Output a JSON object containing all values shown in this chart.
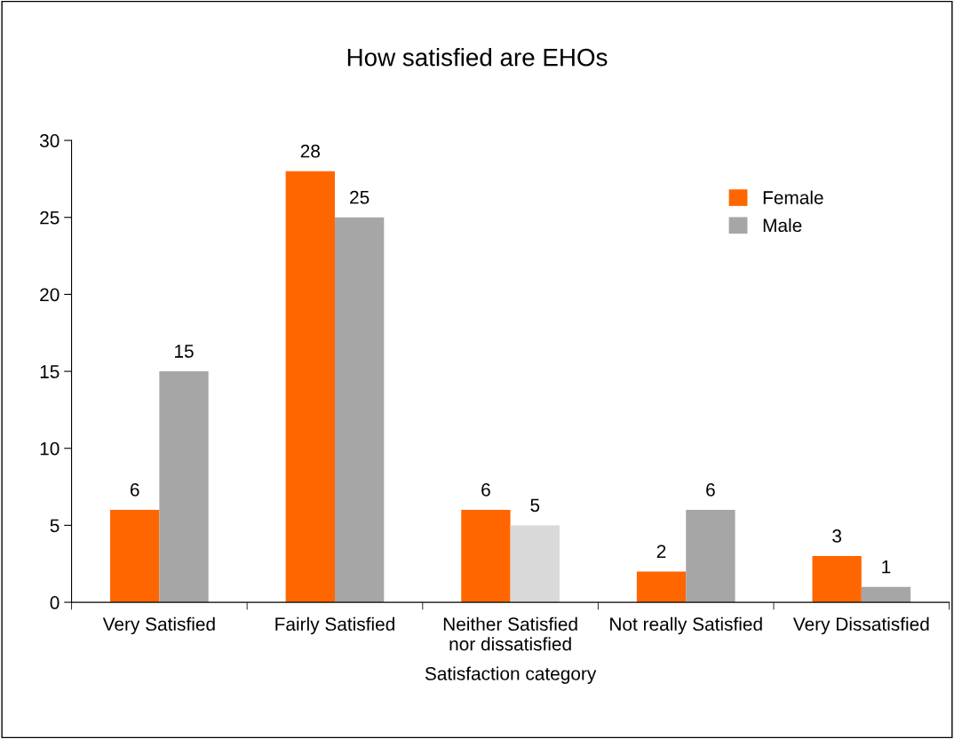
{
  "chart_data": {
    "type": "bar",
    "title": "How satisfied are EHOs",
    "xlabel": "Satisfaction category",
    "categories": [
      "Very Satisfied",
      "Fairly Satisfied",
      "Neither Satisfied\nnor dissatisfied",
      "Not really Satisfied",
      "Very Dissatisfied"
    ],
    "series": [
      {
        "name": "Female",
        "color": "#ff6600",
        "values": [
          6,
          28,
          6,
          2,
          3
        ]
      },
      {
        "name": "Male",
        "color": "#a6a6a6",
        "colors": [
          "#a6a6a6",
          "#a6a6a6",
          "#d9d9d9",
          "#a6a6a6",
          "#a6a6a6"
        ],
        "values": [
          15,
          25,
          5,
          6,
          1
        ]
      }
    ],
    "ylim": [
      0,
      30
    ],
    "yticks": [
      0,
      5,
      10,
      15,
      20,
      25,
      30
    ],
    "data_labels": true,
    "legend": "top right"
  }
}
